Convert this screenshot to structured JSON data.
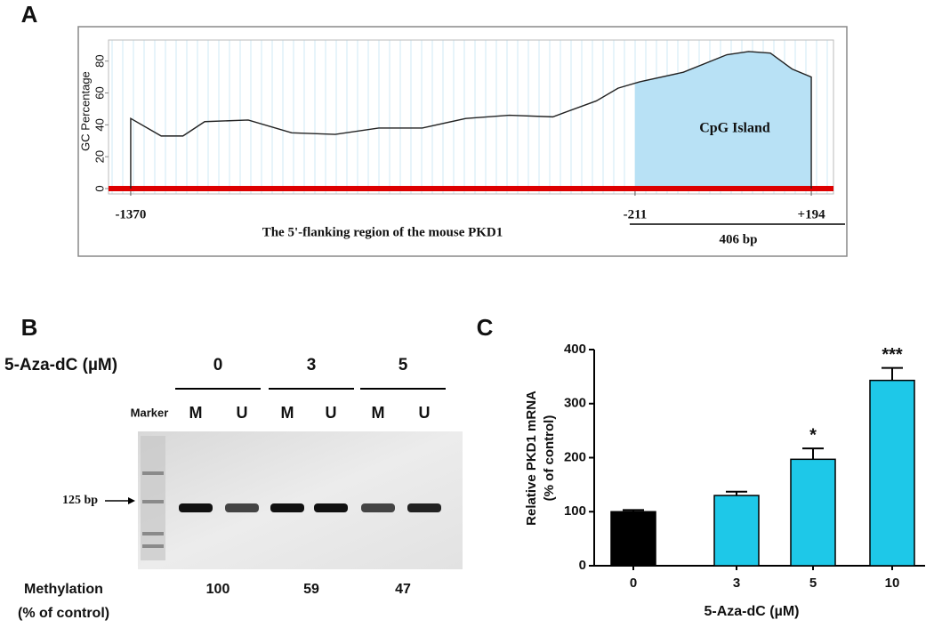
{
  "panel_labels": [
    "A",
    "B",
    "C"
  ],
  "chart_data": [
    {
      "type": "line",
      "ylabel": "GC Percentage",
      "xlabel": "The 5'-flanking region of the mouse PKD1",
      "x": [
        -1370,
        -1370,
        -1300,
        -1250,
        -1200,
        -1100,
        -1000,
        -900,
        -800,
        -700,
        -600,
        -500,
        -400,
        -300,
        -250,
        -200,
        -100,
        0,
        50,
        100,
        150,
        194,
        194
      ],
      "values": [
        0,
        44,
        33,
        33,
        42,
        43,
        35,
        34,
        38,
        38,
        44,
        46,
        45,
        55,
        63,
        67,
        73,
        84,
        86,
        85,
        75,
        70,
        0
      ],
      "color": "#222222",
      "xlim": [
        -1421,
        245
      ],
      "ylim": [
        0,
        96
      ],
      "xticks": [
        -1370,
        -211,
        {
          "value": 194,
          "label": "+194"
        }
      ],
      "yticks": [
        0,
        20,
        40,
        60,
        80
      ],
      "baseline_color": "#dd0000",
      "highlight": {
        "from": -211,
        "to": 194,
        "label": "CpG Island",
        "color": "#b8e1f5"
      },
      "span_label": "406 bp"
    },
    {
      "type": "bar",
      "categories": [
        "0",
        "3",
        "5",
        "10"
      ],
      "values": [
        100,
        130,
        197,
        343
      ],
      "errors": [
        3,
        7,
        20,
        23
      ],
      "colors": [
        "#000000",
        "#1ec8e8",
        "#1ec8e8",
        "#1ec8e8"
      ],
      "significance": [
        null,
        null,
        "*",
        "***"
      ],
      "ylim": [
        0,
        400
      ],
      "yticks": [
        0,
        100,
        200,
        300,
        400
      ],
      "ylabel": [
        "Relative PKD1 mRNA",
        "(% of control)"
      ],
      "xlabel": "5-Aza-dC (µM)"
    }
  ],
  "gel": {
    "treatment_label": "5-Aza-dC (µM)",
    "doses": [
      "0",
      "3",
      "5"
    ],
    "lanes": [
      "Marker",
      "M",
      "U",
      "M",
      "U",
      "M",
      "U"
    ],
    "size_marker": "125 bp",
    "methylation_label": [
      "Methylation",
      "(% of control)"
    ],
    "methylation": [
      100,
      59,
      47
    ]
  }
}
